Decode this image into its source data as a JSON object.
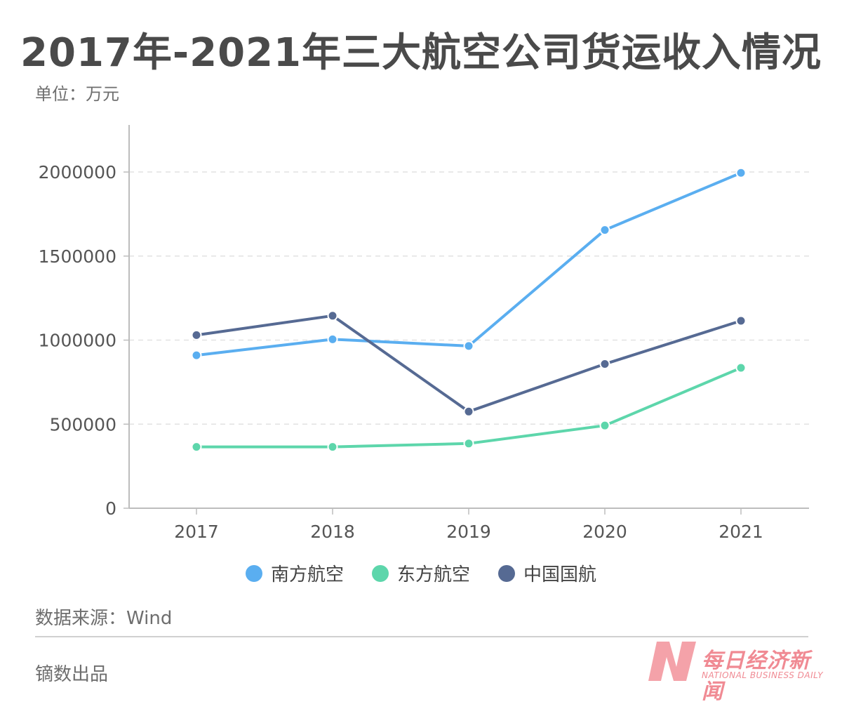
{
  "title": "2017年-2021年三大航空公司货运收入情况",
  "unit_label": "单位：万元",
  "source_label": "数据来源：Wind",
  "producer_label": "镝数出品",
  "brand": {
    "name_cn": "每日经济新闻",
    "name_en": "NATIONAL BUSINESS DAILY",
    "logo_letter": "N",
    "color": "#f4a2a9"
  },
  "chart_data": {
    "type": "line",
    "title": "2017年-2021年三大航空公司货运收入情况",
    "ylabel": "单位：万元",
    "xlabel": "",
    "categories": [
      "2017",
      "2018",
      "2019",
      "2020",
      "2021"
    ],
    "ylim": [
      0,
      2280000
    ],
    "yticks": [
      0,
      500000,
      1000000,
      1500000,
      2000000
    ],
    "ytick_labels": [
      "0",
      "500000",
      "1000000",
      "1500000",
      "2000000"
    ],
    "grid": true,
    "legend_position": "bottom",
    "series": [
      {
        "name": "南方航空",
        "color": "#5aaef0",
        "values": [
          910000,
          1005000,
          965000,
          1655000,
          1995000
        ]
      },
      {
        "name": "东方航空",
        "color": "#5dd6ab",
        "values": [
          365000,
          365000,
          385000,
          492000,
          835000
        ]
      },
      {
        "name": "中国国航",
        "color": "#566a93",
        "values": [
          1030000,
          1145000,
          575000,
          858000,
          1115000
        ]
      }
    ]
  }
}
